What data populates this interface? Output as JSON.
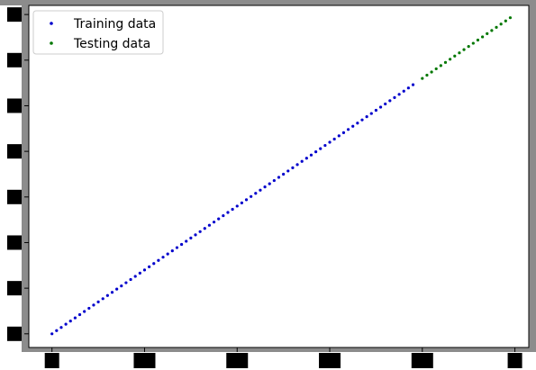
{
  "chart_data": {
    "type": "scatter",
    "title": "",
    "xlabel": "",
    "ylabel": "",
    "xlim": [
      -0.05,
      1.03
    ],
    "ylim": [
      0.27,
      1.02
    ],
    "xticks": [
      0.0,
      0.2,
      0.4,
      0.6,
      0.8,
      1.0
    ],
    "yticks": [
      0.3,
      0.4,
      0.5,
      0.6,
      0.7,
      0.8,
      0.9,
      1.0
    ],
    "grid": false,
    "legend_position": "top-left",
    "series": [
      {
        "name": "Training data",
        "color": "#0000cc",
        "x_start": 0.0,
        "x_end": 0.78,
        "x_step": 0.01,
        "slope": 0.7,
        "intercept": 0.3
      },
      {
        "name": "Testing data",
        "color": "#007700",
        "x_start": 0.8,
        "x_end": 0.99,
        "x_step": 0.01,
        "slope": 0.7,
        "intercept": 0.3
      }
    ]
  },
  "colors": {
    "frame_gray": "#8c8c8c",
    "tick_redaction": "#000000"
  }
}
